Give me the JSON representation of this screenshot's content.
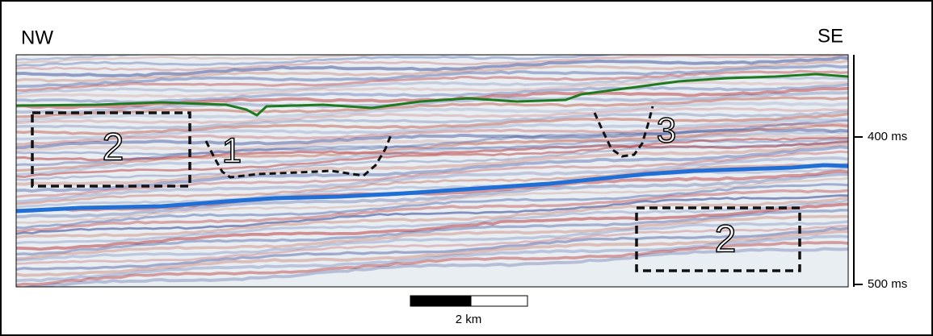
{
  "header": {
    "left": "NW",
    "right": "SE"
  },
  "axis": {
    "ticks": [
      "400 ms",
      "500 ms"
    ]
  },
  "scale_bar": {
    "label": "2 km"
  },
  "annotations": [
    "2",
    "1",
    "3",
    "2"
  ]
}
